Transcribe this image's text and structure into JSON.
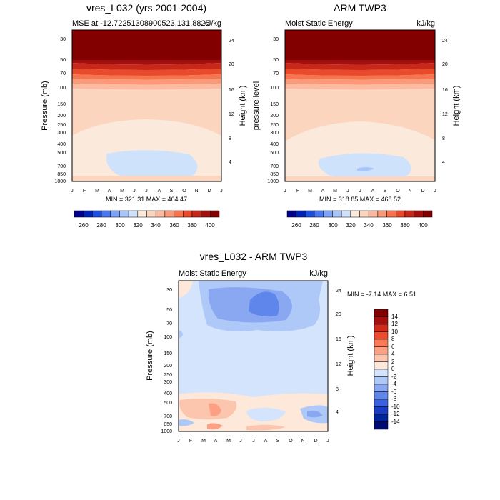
{
  "chart_data": [
    {
      "type": "heatmap",
      "title": "vres_L032 (yrs 2001-2004)",
      "subtitle_left": "MSE at -12.72251308900523,131.8825",
      "subtitle_right": "kJ/kg",
      "ylabel": "Pressure (mb)",
      "ylabel_right": "Height (km)",
      "x_ticks": [
        "J",
        "F",
        "M",
        "A",
        "M",
        "J",
        "J",
        "A",
        "S",
        "O",
        "N",
        "D",
        "J"
      ],
      "y_ticks": [
        "30",
        "50",
        "70",
        "100",
        "150",
        "200",
        "250",
        "300",
        "400",
        "500",
        "700",
        "850",
        "1000"
      ],
      "y_ticks_right": [
        "24",
        "20",
        "16",
        "12",
        "8",
        "4"
      ],
      "stats": "MIN = 321.31  MAX = 464.47",
      "colorbar_labels": [
        "260",
        "280",
        "300",
        "320",
        "340",
        "360",
        "380",
        "400"
      ]
    },
    {
      "type": "heatmap",
      "title": "ARM TWP3",
      "subtitle_left": "Moist Static Energy",
      "subtitle_right": "kJ/kg",
      "ylabel": "pressure level",
      "ylabel_right": "Height (km)",
      "x_ticks": [
        "J",
        "F",
        "M",
        "A",
        "M",
        "J",
        "J",
        "A",
        "S",
        "O",
        "N",
        "D",
        "J"
      ],
      "y_ticks": [
        "30",
        "50",
        "70",
        "100",
        "150",
        "200",
        "250",
        "300",
        "400",
        "500",
        "700",
        "850",
        "1000"
      ],
      "y_ticks_right": [
        "24",
        "20",
        "16",
        "12",
        "8",
        "4"
      ],
      "stats": "MIN = 318.85  MAX = 468.52",
      "colorbar_labels": [
        "260",
        "280",
        "300",
        "320",
        "340",
        "360",
        "380",
        "400"
      ]
    },
    {
      "type": "heatmap",
      "title": "vres_L032 - ARM TWP3",
      "subtitle_left": "Moist Static Energy",
      "subtitle_right": "kJ/kg",
      "ylabel": "Pressure (mb)",
      "ylabel_right": "Height (km)",
      "x_ticks": [
        "J",
        "F",
        "M",
        "A",
        "M",
        "J",
        "J",
        "A",
        "S",
        "O",
        "N",
        "D",
        "J"
      ],
      "y_ticks": [
        "30",
        "50",
        "70",
        "100",
        "150",
        "200",
        "250",
        "300",
        "400",
        "500",
        "700",
        "850",
        "1000"
      ],
      "y_ticks_right": [
        "24",
        "20",
        "16",
        "12",
        "8",
        "4"
      ],
      "stats": "MIN =  -7.14  MAX =   6.51",
      "colorbar_labels": [
        "14",
        "12",
        "10",
        "8",
        "6",
        "4",
        "2",
        "0",
        "-2",
        "-4",
        "-6",
        "-8",
        "-10",
        "-12",
        "-14"
      ]
    }
  ],
  "colors": {
    "abs_scale": [
      "#00008c",
      "#0022b8",
      "#1e4ee0",
      "#4a78f0",
      "#7ea4f7",
      "#a9c6fa",
      "#cfe2fc",
      "#fbe9dc",
      "#fcd5bf",
      "#fcbba0",
      "#fb9a78",
      "#f6744e",
      "#e84a2b",
      "#c8281a",
      "#a10f0e",
      "#830000"
    ],
    "diff_scale": [
      "#830000",
      "#a60f0e",
      "#d02a1a",
      "#ef4a2b",
      "#fb7a55",
      "#fca084",
      "#fcc5ad",
      "#fde8da",
      "#d4e4fc",
      "#aec8f8",
      "#8aa8f2",
      "#5f86ea",
      "#3a62e0",
      "#1a3cc4",
      "#00249a",
      "#000a72"
    ]
  }
}
